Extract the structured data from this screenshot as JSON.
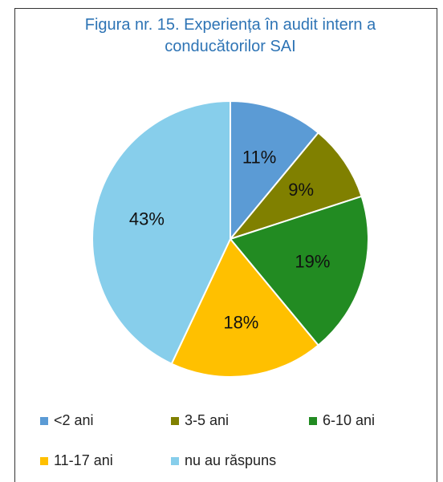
{
  "chart_data": {
    "type": "pie",
    "title": "Figura nr. 15. Experiența în audit intern a conducătorilor SAI",
    "categories": [
      "<2 ani",
      "3-5 ani",
      "6-10 ani",
      "11-17 ani",
      "nu au răspuns"
    ],
    "values": [
      11,
      9,
      19,
      18,
      43
    ],
    "value_labels": [
      "11%",
      "9%",
      "19%",
      "18%",
      "43%"
    ],
    "colors": [
      "#5b9bd5",
      "#808000",
      "#228b22",
      "#ffc000",
      "#87ceeb"
    ],
    "legend": "bottom"
  }
}
